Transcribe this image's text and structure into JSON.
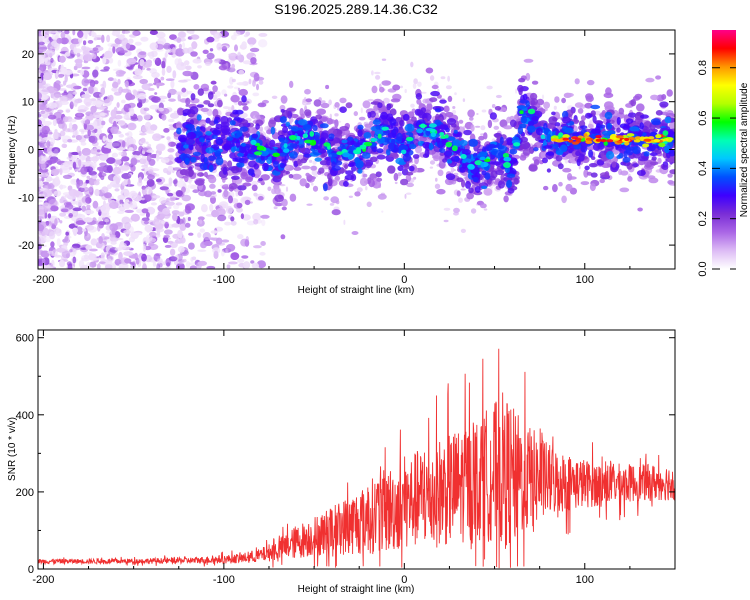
{
  "title": "S196.2025.289.14.36.C32",
  "chart_data": [
    {
      "type": "heatmap",
      "name": "spectrogram",
      "xlabel": "Height of straight line (km)",
      "ylabel": "Frequency (Hz)",
      "xlim": [
        -203,
        150
      ],
      "ylim": [
        -25,
        25
      ],
      "xticks": [
        -200,
        -100,
        0,
        100
      ],
      "yticks": [
        -20,
        -10,
        0,
        10,
        20
      ],
      "ridge_x": [
        -130,
        -110,
        -90,
        -80,
        -70,
        -60,
        -50,
        -40,
        -30,
        -20,
        -10,
        0,
        10,
        20,
        30,
        40,
        45,
        50,
        60,
        65,
        70,
        80,
        90,
        100,
        110,
        120,
        130,
        140,
        150
      ],
      "ridge_y": [
        0,
        1,
        1,
        0,
        -1,
        3,
        2,
        0,
        -1,
        1,
        4,
        0,
        5,
        3,
        -1,
        -4,
        -3,
        0,
        -3,
        7,
        6,
        2,
        2,
        2,
        2,
        2,
        2,
        2,
        2
      ],
      "colorbar": {
        "label": "Normalized spectral amplitude",
        "ticks": [
          0.0,
          0.2,
          0.4,
          0.6,
          0.8
        ],
        "range": [
          0,
          0.95
        ],
        "colors": [
          "#ffffff",
          "#ddbbf5",
          "#aa66e6",
          "#7a2ed6",
          "#3d00ff",
          "#0050ff",
          "#00c8ff",
          "#00ffb4",
          "#00ff00",
          "#b4ff00",
          "#ffff00",
          "#ff9600",
          "#ff0000",
          "#ff0088"
        ]
      }
    },
    {
      "type": "line",
      "name": "snr",
      "xlabel": "Height of straight line (km)",
      "ylabel": "SNR (10 * v/v)",
      "xlim": [
        -203,
        150
      ],
      "ylim": [
        0,
        620
      ],
      "xticks": [
        -200,
        -100,
        0,
        100
      ],
      "yticks": [
        0,
        200,
        400,
        600
      ],
      "color": "#f03030",
      "envelope_x": [
        -203,
        -180,
        -160,
        -140,
        -120,
        -100,
        -90,
        -80,
        -70,
        -60,
        -50,
        -40,
        -30,
        -20,
        -10,
        0,
        10,
        20,
        30,
        40,
        50,
        55,
        60,
        70,
        80,
        90,
        100,
        110,
        120,
        130,
        140,
        150
      ],
      "envelope_mean": [
        20,
        20,
        20,
        21,
        22,
        25,
        28,
        35,
        50,
        70,
        85,
        100,
        115,
        135,
        150,
        170,
        185,
        200,
        215,
        235,
        250,
        255,
        245,
        235,
        230,
        225,
        222,
        220,
        222,
        223,
        225,
        225
      ],
      "envelope_spread": [
        8,
        8,
        8,
        9,
        10,
        14,
        16,
        22,
        35,
        55,
        65,
        80,
        100,
        120,
        140,
        150,
        165,
        180,
        190,
        200,
        230,
        260,
        220,
        170,
        120,
        95,
        80,
        70,
        65,
        60,
        60,
        60
      ]
    }
  ]
}
